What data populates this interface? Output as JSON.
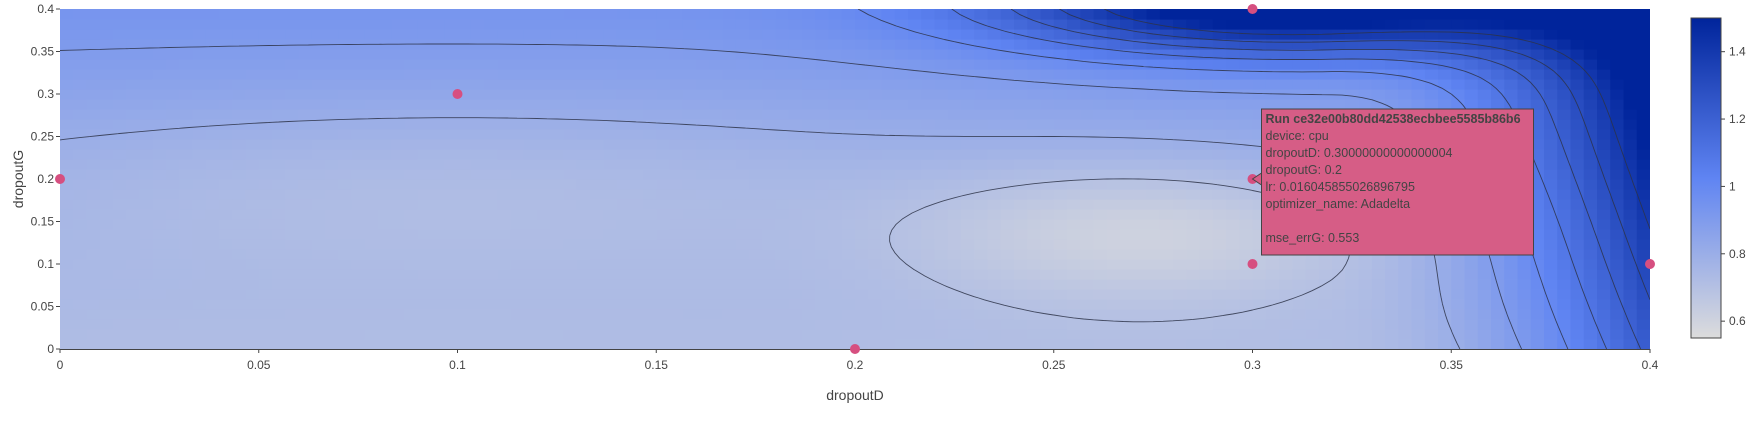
{
  "chart_data": {
    "type": "contour",
    "xlabel": "dropoutD",
    "ylabel": "dropoutG",
    "xlim": [
      0,
      0.4
    ],
    "ylim": [
      0,
      0.4
    ],
    "x_ticks": [
      0,
      0.05,
      0.1,
      0.15,
      0.2,
      0.25,
      0.3,
      0.35,
      0.4
    ],
    "y_ticks": [
      0,
      0.05,
      0.1,
      0.15,
      0.2,
      0.25,
      0.3,
      0.35,
      0.4
    ],
    "colorbar": {
      "range": [
        0.55,
        1.5
      ],
      "ticks": [
        0.6,
        0.8,
        1,
        1.2,
        1.4
      ],
      "colorscale": [
        "#dcdcdc",
        "#5f84f2",
        "#00249b"
      ]
    },
    "contour_levels": [
      0.6,
      0.7,
      0.8,
      0.9,
      1.0,
      1.1,
      1.2,
      1.3,
      1.4
    ],
    "points": [
      {
        "x": 0,
        "y": 0.2
      },
      {
        "x": 0.1,
        "y": 0.3
      },
      {
        "x": 0.2,
        "y": 0
      },
      {
        "x": 0.3,
        "y": 0.4
      },
      {
        "x": 0.3,
        "y": 0.2
      },
      {
        "x": 0.3,
        "y": 0.1
      },
      {
        "x": 0.4,
        "y": 0.1
      }
    ],
    "point_color": "#d64f80",
    "tooltip": {
      "x": 0.3,
      "y": 0.2,
      "title": "Run ce32e00b80dd42538ecbbee5585b86b6",
      "lines": [
        "device: cpu",
        "dropoutD: 0.30000000000000004",
        "dropoutG: 0.2",
        "lr: 0.016045855026896795",
        "optimizer_name: Adadelta",
        "",
        "mse_errG: 0.553"
      ],
      "bgcolor": "#d65d86"
    }
  }
}
